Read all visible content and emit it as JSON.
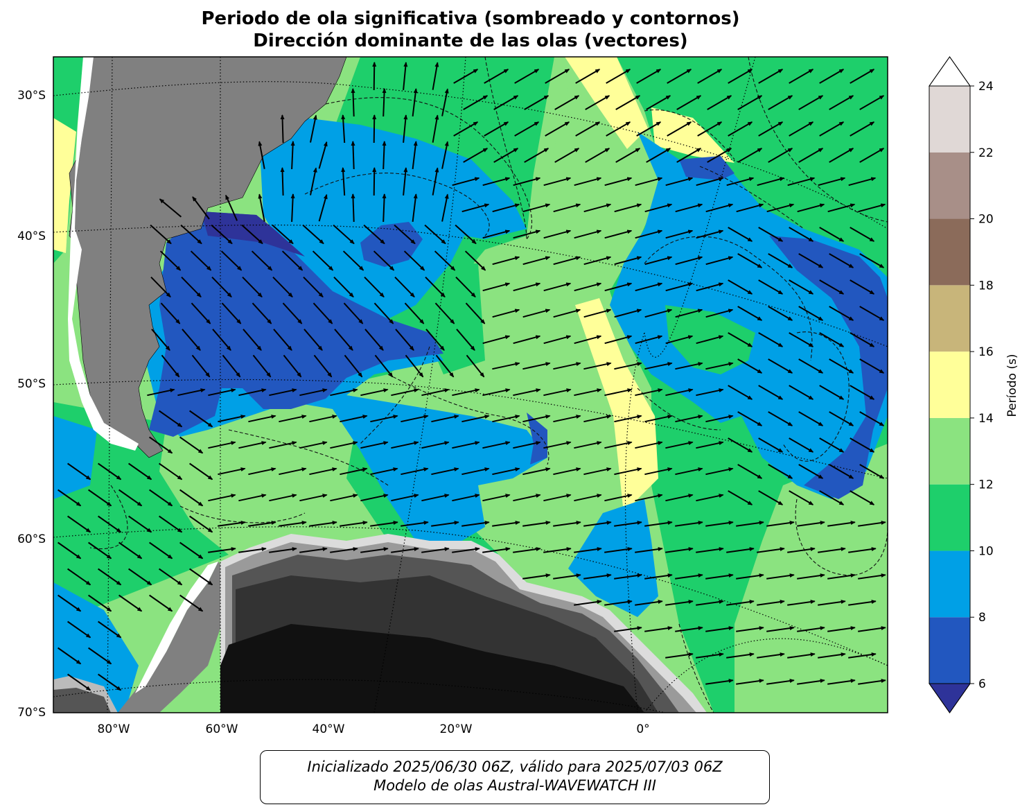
{
  "title": {
    "line1": "Periodo de ola significativa (sombreado y contornos)",
    "line2": "Dirección dominante de las olas (vectores)"
  },
  "map": {
    "lat_labels": [
      "30°S",
      "40°S",
      "50°S",
      "60°S",
      "70°S"
    ],
    "lon_labels": [
      "80°W",
      "60°W",
      "40°W",
      "20°W",
      "0°"
    ],
    "land_color": "#808080",
    "ice_color": "#111111"
  },
  "colorbar": {
    "label": "Período (s)",
    "ticks": [
      "6",
      "8",
      "10",
      "12",
      "14",
      "16",
      "18",
      "20",
      "22",
      "24"
    ],
    "levels": [
      {
        "from": 6,
        "to": 8,
        "color": "#2257bf"
      },
      {
        "from": 8,
        "to": 10,
        "color": "#00a0e6"
      },
      {
        "from": 10,
        "to": 12,
        "color": "#1ecf6b"
      },
      {
        "from": 12,
        "to": 14,
        "color": "#8be380"
      },
      {
        "from": 14,
        "to": 16,
        "color": "#ffff99"
      },
      {
        "from": 16,
        "to": 18,
        "color": "#c8b57a"
      },
      {
        "from": 18,
        "to": 20,
        "color": "#8b6b5a"
      },
      {
        "from": 20,
        "to": 22,
        "color": "#a88f88"
      },
      {
        "from": 22,
        "to": 24,
        "color": "#e0d8d6"
      }
    ],
    "under_color": "#2e3399",
    "over_color": "#ffffff"
  },
  "footer": {
    "line1": "Inicializado 2025/06/30 06Z, válido para 2025/07/03 06Z",
    "line2": "Modelo de olas Austral-WAVEWATCH III"
  }
}
